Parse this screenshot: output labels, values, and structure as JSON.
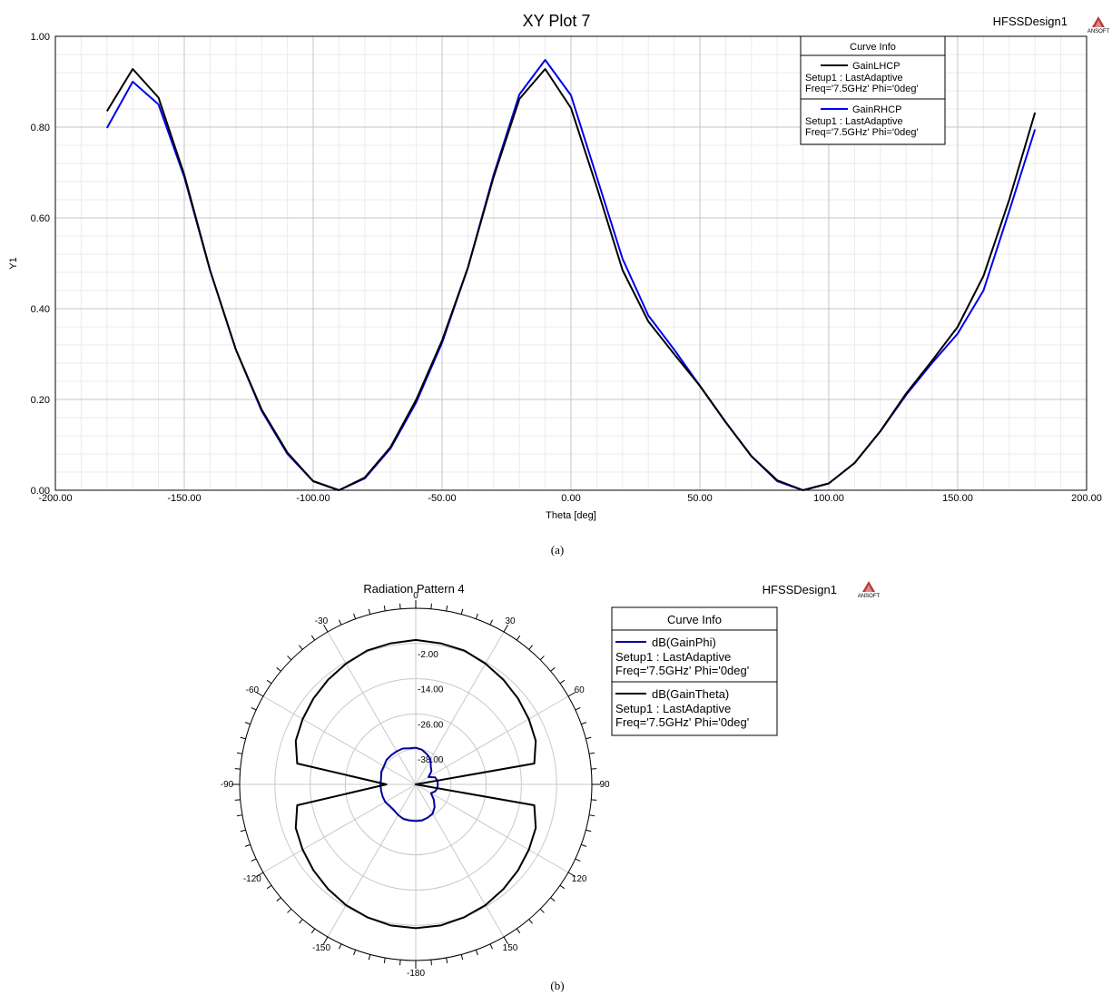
{
  "chart_data": [
    {
      "type": "line",
      "title": "XY Plot 7",
      "design": "HFSSDesign1",
      "logo_text": "ANSOFT",
      "xlabel": "Theta [deg]",
      "ylabel": "Y1",
      "xlim": [
        -200,
        200
      ],
      "ylim": [
        0,
        1
      ],
      "xticks": [
        "-200.00",
        "-150.00",
        "-100.00",
        "-50.00",
        "0.00",
        "50.00",
        "100.00",
        "150.00",
        "200.00"
      ],
      "yticks": [
        "0.00",
        "0.20",
        "0.40",
        "0.60",
        "0.80",
        "1.00"
      ],
      "grid": true,
      "legend": {
        "title": "Curve Info",
        "placement": "top-right",
        "entries": [
          {
            "name": "GainLHCP",
            "lines": [
              "Setup1 : LastAdaptive",
              "Freq='7.5GHz' Phi='0deg'"
            ]
          },
          {
            "name": "GainRHCP",
            "lines": [
              "Setup1 : LastAdaptive",
              "Freq='7.5GHz' Phi='0deg'"
            ]
          }
        ]
      },
      "x": [
        -180,
        -170,
        -160,
        -150,
        -140,
        -130,
        -120,
        -110,
        -100,
        -90,
        -80,
        -70,
        -60,
        -50,
        -40,
        -30,
        -20,
        -10,
        0,
        10,
        20,
        30,
        40,
        50,
        60,
        70,
        80,
        90,
        100,
        110,
        120,
        130,
        140,
        150,
        160,
        170,
        180
      ],
      "series": [
        {
          "name": "GainLHCP",
          "color": "#000000",
          "values": [
            0.835,
            0.928,
            0.865,
            0.695,
            0.485,
            0.31,
            0.178,
            0.083,
            0.02,
            0.0,
            0.028,
            0.095,
            0.2,
            0.33,
            0.49,
            0.69,
            0.862,
            0.928,
            0.842,
            0.668,
            0.485,
            0.372,
            0.3,
            0.23,
            0.15,
            0.075,
            0.022,
            0.0,
            0.015,
            0.06,
            0.13,
            0.213,
            0.285,
            0.36,
            0.472,
            0.64,
            0.832
          ]
        },
        {
          "name": "GainRHCP",
          "color": "#0000ee",
          "values": [
            0.798,
            0.9,
            0.85,
            0.69,
            0.484,
            0.31,
            0.175,
            0.08,
            0.02,
            0.0,
            0.026,
            0.092,
            0.194,
            0.325,
            0.49,
            0.695,
            0.872,
            0.948,
            0.87,
            0.69,
            0.51,
            0.385,
            0.31,
            0.23,
            0.15,
            0.075,
            0.02,
            0.0,
            0.015,
            0.06,
            0.13,
            0.21,
            0.28,
            0.345,
            0.44,
            0.615,
            0.795
          ]
        }
      ]
    },
    {
      "type": "polar",
      "title": "Radiation Pattern 4",
      "design": "HFSSDesign1",
      "logo_text": "ANSOFT",
      "angle_labels": [
        "0",
        "30",
        "60",
        "90",
        "120",
        "150",
        "-180",
        "-150",
        "-120",
        "-90",
        "-60",
        "-30"
      ],
      "radial_labels": [
        "-2.00",
        "-14.00",
        "-26.00",
        "-38.00"
      ],
      "rlim": [
        -50,
        10
      ],
      "legend": {
        "title": "Curve Info",
        "placement": "right",
        "entries": [
          {
            "name": "dB(GainPhi)",
            "lines": [
              "Setup1 : LastAdaptive",
              "Freq='7.5GHz' Phi='0deg'"
            ]
          },
          {
            "name": "dB(GainTheta)",
            "lines": [
              "Setup1 : LastAdaptive",
              "Freq='7.5GHz' Phi='0deg'"
            ]
          }
        ]
      },
      "theta": [
        0,
        10,
        20,
        30,
        40,
        50,
        60,
        70,
        80,
        90,
        100,
        110,
        120,
        130,
        140,
        150,
        160,
        170,
        180,
        -170,
        -160,
        -150,
        -140,
        -130,
        -120,
        -110,
        -100,
        -90,
        -80,
        -70,
        -60,
        -50,
        -40,
        -30,
        -20,
        -10
      ],
      "series": [
        {
          "name": "dB(GainPhi)",
          "color": "#00009c",
          "values": [
            -37.5,
            -38,
            -39,
            -40,
            -42,
            -43,
            -45,
            -43,
            -42.5,
            -42.5,
            -42.5,
            -43,
            -44,
            -42,
            -40,
            -38.5,
            -38,
            -37.5,
            -37.5,
            -37.5,
            -37.5,
            -38,
            -38.5,
            -38.5,
            -38,
            -38,
            -38,
            -38,
            -38,
            -37.5,
            -37.5,
            -37,
            -37,
            -37,
            -37,
            -37.5
          ]
        },
        {
          "name": "dB(GainTheta)",
          "color": "#000000",
          "values": [
            -0.8,
            -1.2,
            -1.5,
            -2.5,
            -3.5,
            -4.5,
            -5.5,
            -6.5,
            -9,
            -50,
            -9,
            -6.5,
            -5.5,
            -4.5,
            -3.5,
            -2.5,
            -1.8,
            -1.2,
            -1,
            -1.2,
            -1.8,
            -2.5,
            -3.5,
            -4.5,
            -5.5,
            -6.5,
            -9,
            -40,
            -9,
            -6.5,
            -5.5,
            -4.5,
            -3.5,
            -2.5,
            -1.5,
            -1.2
          ]
        }
      ]
    }
  ],
  "captions": {
    "a": "(a)",
    "b": "(b)"
  }
}
